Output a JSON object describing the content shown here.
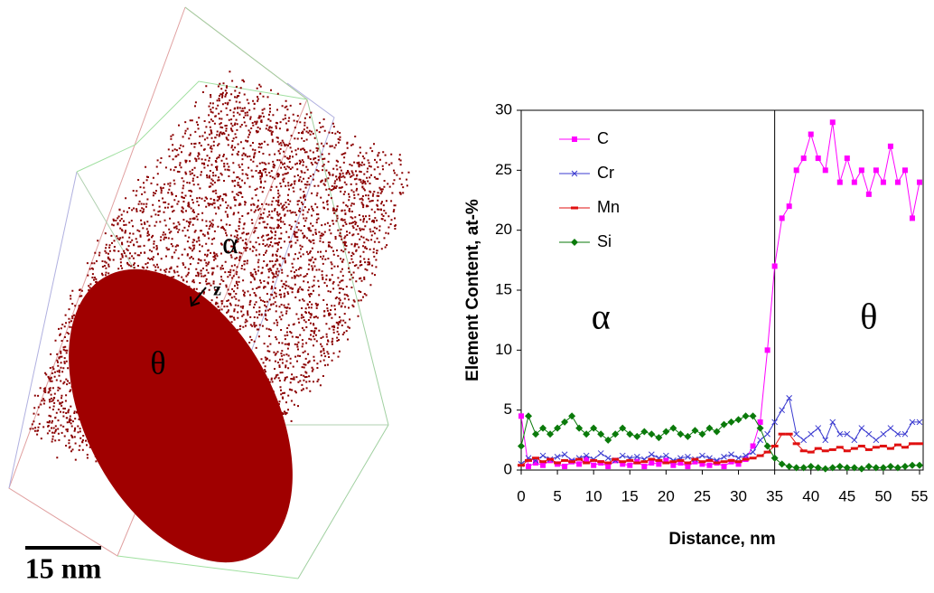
{
  "reconstruction": {
    "phase_alpha": "α",
    "phase_theta": "θ",
    "axis": "z",
    "scale_bar": "15 nm"
  },
  "chart_data": {
    "type": "line",
    "xlabel": "Distance, nm",
    "ylabel": "Element Content, at-%",
    "x": [
      0,
      1,
      2,
      3,
      4,
      5,
      6,
      7,
      8,
      9,
      10,
      11,
      12,
      13,
      14,
      15,
      16,
      17,
      18,
      19,
      20,
      21,
      22,
      23,
      24,
      25,
      26,
      27,
      28,
      29,
      30,
      31,
      32,
      33,
      34,
      35,
      36,
      37,
      38,
      39,
      40,
      41,
      42,
      43,
      44,
      45,
      46,
      47,
      48,
      49,
      50,
      51,
      52,
      53,
      54,
      55
    ],
    "series": [
      {
        "name": "C",
        "color": "#ff00ff",
        "marker": "square",
        "values": [
          4.5,
          0.3,
          0.6,
          0.4,
          0.8,
          0.5,
          0.3,
          0.7,
          0.5,
          0.9,
          0.4,
          0.6,
          0.3,
          0.8,
          0.5,
          0.4,
          0.7,
          0.3,
          0.6,
          0.5,
          0.8,
          0.4,
          0.6,
          0.3,
          0.7,
          0.5,
          0.4,
          0.6,
          0.3,
          0.7,
          0.5,
          0.9,
          2,
          4,
          10,
          17,
          21,
          22,
          25,
          26,
          28,
          26,
          25,
          29,
          24,
          26,
          24,
          25,
          23,
          25,
          24,
          27,
          24,
          25,
          21,
          24
        ]
      },
      {
        "name": "Cr",
        "color": "#3b3bd0",
        "marker": "x",
        "values": [
          0.5,
          1,
          0.8,
          1.2,
          0.9,
          1.1,
          1.3,
          0.8,
          1,
          1.2,
          0.9,
          1.4,
          1,
          0.8,
          1.2,
          1,
          1.1,
          0.9,
          1.3,
          1,
          1.2,
          0.8,
          1,
          1.1,
          0.9,
          1.2,
          1,
          0.8,
          1.1,
          1.3,
          1,
          1.2,
          1.5,
          2.5,
          3,
          4,
          5,
          6,
          3,
          2.5,
          3,
          3.5,
          2.5,
          4,
          3,
          3,
          2.5,
          3.5,
          3,
          2.5,
          3,
          3.5,
          3,
          3,
          4,
          4
        ]
      },
      {
        "name": "Mn",
        "color": "#e01010",
        "marker": "dash",
        "values": [
          0.4,
          0.8,
          1,
          0.7,
          0.9,
          0.6,
          0.8,
          0.7,
          0.9,
          0.6,
          0.8,
          0.7,
          0.6,
          0.9,
          0.7,
          0.8,
          0.6,
          0.7,
          0.9,
          0.8,
          0.6,
          0.7,
          0.8,
          0.6,
          0.9,
          0.7,
          0.8,
          0.6,
          0.7,
          0.8,
          0.7,
          0.9,
          1,
          1.2,
          1.5,
          2,
          3,
          3,
          2.2,
          1.6,
          1.5,
          1.8,
          1.6,
          1.7,
          1.9,
          1.6,
          1.8,
          2,
          1.7,
          1.9,
          2,
          1.8,
          2.1,
          1.9,
          2.2,
          2.2
        ]
      },
      {
        "name": "Si",
        "color": "#0a7a0a",
        "marker": "diamond",
        "values": [
          2,
          4.5,
          3,
          3.5,
          3,
          3.5,
          4,
          4.5,
          3.5,
          3,
          3.5,
          3,
          2.5,
          3,
          3.5,
          3,
          2.8,
          3.2,
          3,
          2.7,
          3.2,
          3.5,
          3,
          2.8,
          3.3,
          3,
          3.5,
          3.2,
          3.8,
          4,
          4.2,
          4.5,
          4.5,
          3.5,
          2,
          1,
          0.5,
          0.3,
          0.2,
          0.2,
          0.3,
          0.2,
          0.1,
          0.2,
          0.3,
          0.2,
          0.2,
          0.1,
          0.3,
          0.2,
          0.2,
          0.3,
          0.2,
          0.3,
          0.4,
          0.4
        ]
      }
    ],
    "xlim": [
      0,
      55.5
    ],
    "xticks": [
      0,
      5,
      10,
      15,
      20,
      25,
      30,
      35,
      40,
      45,
      50,
      55
    ],
    "ylim": [
      0,
      30
    ],
    "yticks": [
      0,
      5,
      10,
      15,
      20,
      25,
      30
    ],
    "vline": 35,
    "legend": "upper left",
    "annotations": [
      {
        "text": "α",
        "x": 11,
        "y": 12.5
      },
      {
        "text": "θ",
        "x": 48,
        "y": 12.5
      }
    ]
  }
}
